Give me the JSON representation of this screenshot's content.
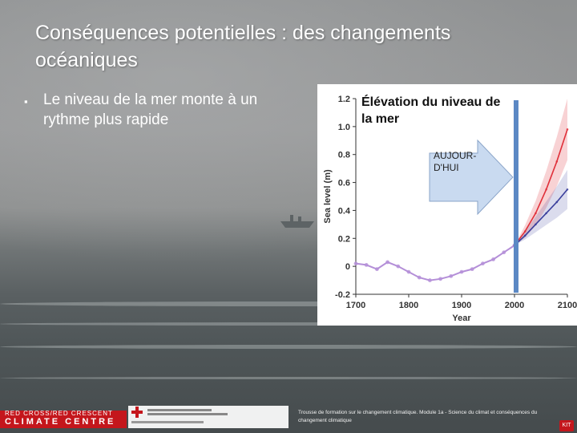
{
  "slide": {
    "title": "Conséquences potentielles : des changements océaniques",
    "bullet": "Le niveau de la mer monte à un rythme plus rapide",
    "bullet_marker": "▪"
  },
  "chart": {
    "title": "Élévation du niveau de la mer",
    "callout": "AUJOUR-D'HUI",
    "colors": {
      "observed": "#b48fd8",
      "projection_high": "#e0303a",
      "projection_low": "#3a3f9c",
      "now_line": "#5b88c4",
      "arrow_fill": "#c9daf0"
    }
  },
  "chart_data": {
    "type": "line",
    "xlabel": "Year",
    "ylabel": "Sea level (m)",
    "xlim": [
      1700,
      2100
    ],
    "ylim": [
      -0.2,
      1.2
    ],
    "x_ticks": [
      "1700",
      "1800",
      "1900",
      "2000",
      "2100"
    ],
    "y_ticks": [
      "-0.2",
      "0",
      "0.2",
      "0.4",
      "0.6",
      "0.8",
      "1.0",
      "1.2"
    ],
    "now_marker_year": 2003,
    "series": [
      {
        "x": [
          1700,
          1720,
          1740,
          1760,
          1780,
          1800,
          1820,
          1840,
          1860,
          1880,
          1900,
          1920,
          1940,
          1960,
          1980,
          2000
        ],
        "y": [
          0.02,
          0.01,
          -0.02,
          0.03,
          0.0,
          -0.04,
          -0.08,
          -0.1,
          -0.09,
          -0.07,
          -0.04,
          -0.02,
          0.02,
          0.05,
          0.1,
          0.15
        ]
      },
      {
        "x": [
          2000,
          2020,
          2040,
          2060,
          2080,
          2100
        ],
        "y": [
          0.15,
          0.25,
          0.38,
          0.55,
          0.75,
          0.98
        ]
      },
      {
        "x": [
          2000,
          2020,
          2040,
          2060,
          2080,
          2100
        ],
        "y": [
          0.15,
          0.22,
          0.3,
          0.38,
          0.46,
          0.55
        ]
      }
    ]
  },
  "footer": {
    "brand_line1": "RED CROSS/RED CRESCENT",
    "brand_line2": "CLIMATE CENTRE",
    "note": "Trousse de formation sur le changement climatique. Module 1a - Science du climat et conséquences du changement climatique",
    "badge": "KIT"
  }
}
